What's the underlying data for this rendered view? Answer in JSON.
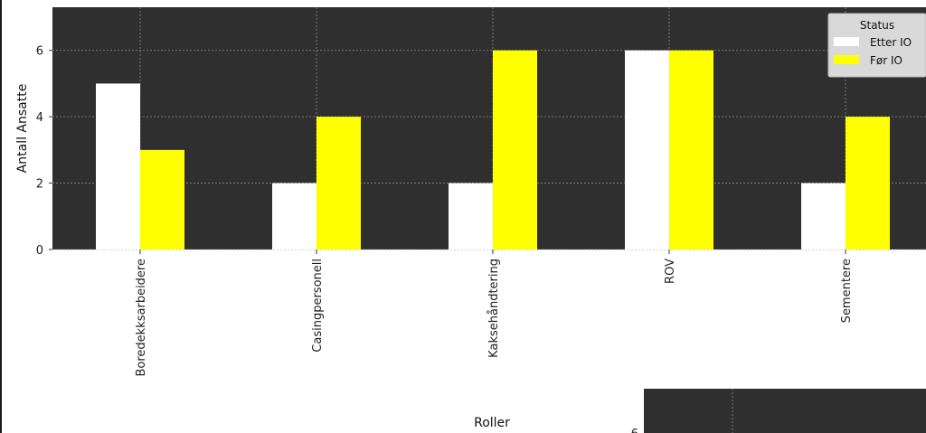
{
  "chart_data": [
    {
      "type": "bar",
      "title": "",
      "xlabel": "Roller",
      "ylabel": "Antall Ansatte",
      "categories": [
        "Boredekksarbeidere",
        "Casingpersonell",
        "Kaksehåndtering",
        "ROV",
        "Sementere"
      ],
      "series": [
        {
          "name": "Etter IO",
          "values": [
            5,
            2,
            2,
            6,
            2
          ],
          "color": "#ffffff"
        },
        {
          "name": "Før IO",
          "values": [
            3,
            4,
            6,
            6,
            4
          ],
          "color": "#ffff00"
        }
      ],
      "ylim": [
        0,
        7.3
      ],
      "yticks": [
        0,
        2,
        4,
        6
      ],
      "grid": true,
      "background": "#2f2f2f",
      "legend": {
        "title": "Status",
        "placement": "top-right"
      }
    },
    {
      "type": "bar",
      "note_partial": true,
      "yticks_visible": [
        "6"
      ],
      "background": "#2f2f2f"
    }
  ]
}
